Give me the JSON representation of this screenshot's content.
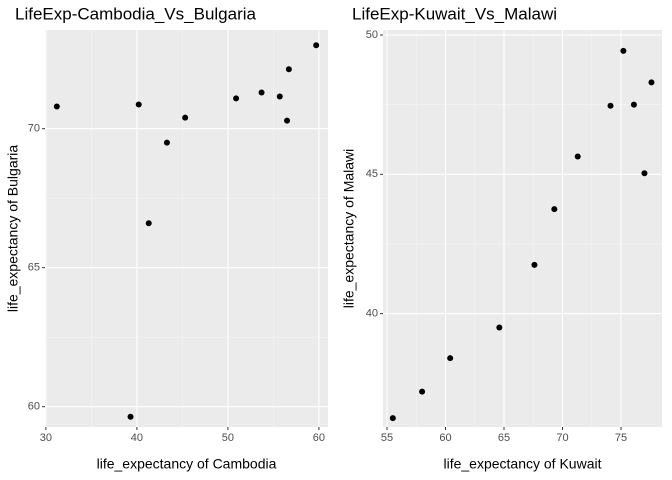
{
  "chart_data": [
    {
      "type": "scatter",
      "title": "LifeExp-Cambodia_Vs_Bulgaria",
      "x_label": "life_expectancy of Cambodia",
      "y_label": "life_expectancy of Bulgaria",
      "x": [
        31.2,
        40.2,
        45.3,
        43.3,
        41.3,
        39.3,
        50.9,
        53.7,
        55.7,
        56.7,
        56.5,
        59.7
      ],
      "y": [
        70.8,
        70.87,
        70.4,
        69.5,
        66.6,
        59.64,
        71.09,
        71.3,
        71.16,
        72.14,
        70.29,
        73.0
      ],
      "xlim": [
        29.9,
        61.0
      ],
      "ylim": [
        59.27,
        73.55
      ],
      "xticks": [
        30,
        40,
        50,
        60
      ],
      "yticks": [
        60,
        65,
        70
      ],
      "grid": true,
      "color": "#000000"
    },
    {
      "type": "scatter",
      "title": "LifeExp-Kuwait_Vs_Malawi",
      "x_label": "life_expectancy of Kuwait",
      "y_label": "life_expectancy of Malawi",
      "x": [
        55.5,
        58.0,
        60.4,
        64.6,
        67.6,
        69.3,
        71.3,
        74.1,
        75.2,
        76.1,
        77.0,
        77.6
      ],
      "y": [
        36.25,
        37.2,
        38.4,
        39.5,
        41.75,
        43.75,
        45.64,
        47.46,
        49.43,
        47.5,
        45.04,
        48.3
      ],
      "xlim": [
        54.66,
        78.5
      ],
      "ylim": [
        35.93,
        50.18
      ],
      "xticks": [
        55,
        60,
        65,
        70,
        75
      ],
      "yticks": [
        40,
        45,
        50
      ],
      "grid": true,
      "color": "#000000"
    }
  ]
}
